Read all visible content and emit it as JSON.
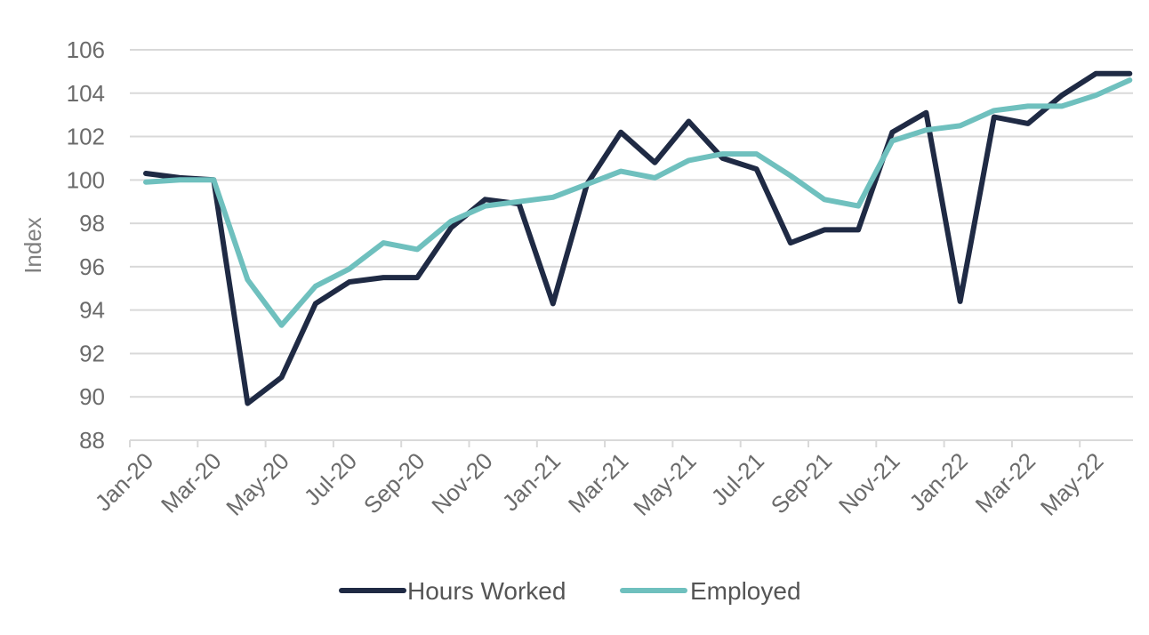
{
  "chart_data": {
    "type": "line",
    "title": "",
    "xlabel": "",
    "ylabel": "Index",
    "ylim": [
      88,
      106
    ],
    "yticks": [
      "106",
      "104",
      "102",
      "100",
      "98",
      "96",
      "94",
      "92",
      "90",
      "88"
    ],
    "grid": true,
    "legend_position": "bottom",
    "x": [
      "Jan-20",
      "Feb-20",
      "Mar-20",
      "Apr-20",
      "May-20",
      "Jun-20",
      "Jul-20",
      "Aug-20",
      "Sep-20",
      "Oct-20",
      "Nov-20",
      "Dec-20",
      "Jan-21",
      "Feb-21",
      "Mar-21",
      "Apr-21",
      "May-21",
      "Jun-21",
      "Jul-21",
      "Aug-21",
      "Sep-21",
      "Oct-21",
      "Nov-21",
      "Dec-21",
      "Jan-22",
      "Feb-22",
      "Mar-22",
      "Apr-22",
      "May-22",
      "Jun-22"
    ],
    "xtick_labels": [
      "Jan-20",
      "Mar-20",
      "May-20",
      "Jul-20",
      "Sep-20",
      "Nov-20",
      "Jan-21",
      "Mar-21",
      "May-21",
      "Jul-21",
      "Sep-21",
      "Nov-21",
      "Jan-22",
      "Mar-22",
      "May-22"
    ],
    "series": [
      {
        "name": "Hours Worked",
        "color": "#1f2a44",
        "values": [
          100.3,
          100.1,
          100.0,
          89.7,
          90.9,
          94.3,
          95.3,
          95.5,
          95.5,
          97.8,
          99.1,
          98.9,
          94.3,
          99.8,
          102.2,
          100.8,
          102.7,
          101.0,
          100.5,
          97.1,
          97.7,
          97.7,
          102.2,
          103.1,
          94.4,
          102.9,
          102.6,
          103.9,
          104.9,
          104.9
        ]
      },
      {
        "name": "Employed",
        "color": "#6fc0be",
        "values": [
          99.9,
          100.0,
          100.0,
          95.4,
          93.3,
          95.1,
          95.9,
          97.1,
          96.8,
          98.1,
          98.8,
          99.0,
          99.2,
          99.8,
          100.4,
          100.1,
          100.9,
          101.2,
          101.2,
          100.2,
          99.1,
          98.8,
          101.8,
          102.3,
          102.5,
          103.2,
          103.4,
          103.4,
          103.9,
          104.6
        ]
      }
    ]
  }
}
